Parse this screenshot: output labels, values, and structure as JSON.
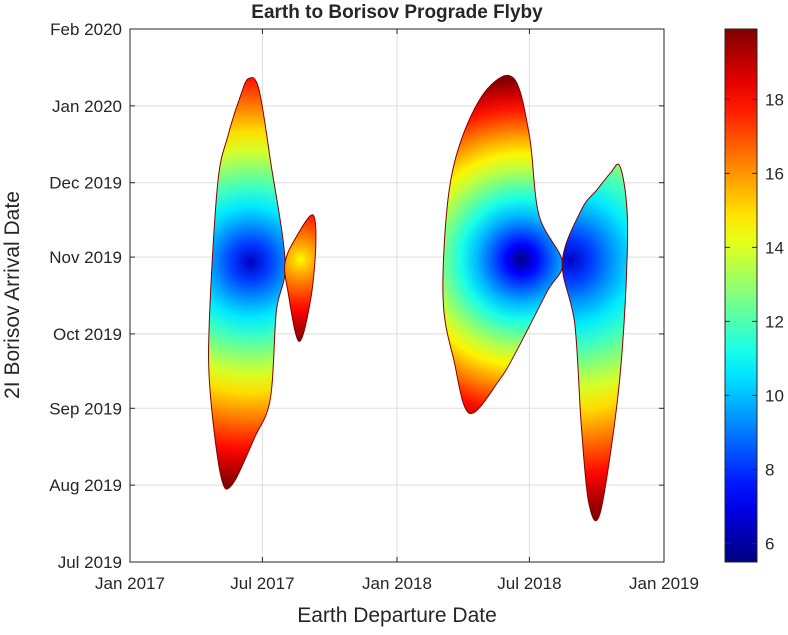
{
  "chart_data": {
    "type": "heatmap",
    "title": "Earth to Borisov Prograde Flyby",
    "xlabel": "Earth Departure Date",
    "ylabel": "2I Borisov Arrival Date",
    "x_ticks": [
      "Jan 2017",
      "Jul 2017",
      "Jan 2018",
      "Jul 2018",
      "Jan 2019"
    ],
    "y_ticks": [
      "Jul 2019",
      "Aug 2019",
      "Sep 2019",
      "Oct 2019",
      "Nov 2019",
      "Dec 2019",
      "Jan 2020",
      "Feb 2020"
    ],
    "xlim": [
      "2017-01-01",
      "2019-01-01"
    ],
    "ylim": [
      "2019-07-01",
      "2020-02-01"
    ],
    "grid": true,
    "colormap": "jet",
    "colorbar": {
      "range": [
        5.5,
        19.9
      ],
      "ticks": [
        6,
        8,
        10,
        12,
        14,
        16,
        18
      ],
      "tick_labels": [
        "6",
        "8",
        "10",
        "12",
        "14",
        "16",
        "18"
      ]
    },
    "regions": [
      {
        "x": [
          "2017-04-20",
          "2017-05-01",
          "2017-05-15",
          "2017-06-01",
          "2017-06-12",
          "2017-06-26",
          "2017-07-12",
          "2017-08-01",
          "2017-07-20",
          "2017-07-12",
          "2017-06-20",
          "2017-05-20",
          "2017-05-05",
          "2017-04-20"
        ],
        "y": [
          "2019-10-10",
          "2019-12-01",
          "2019-12-20",
          "2020-01-05",
          "2020-01-12",
          "2020-01-08",
          "2019-12-10",
          "2019-10-30",
          "2019-10-10",
          "2019-09-05",
          "2019-08-20",
          "2019-08-01",
          "2019-08-05",
          "2019-09-10"
        ],
        "min_value": 6.5,
        "min_at": [
          "2017-06-15",
          "2019-10-30"
        ],
        "edge_value": 19.9
      },
      {
        "x": [
          "2017-08-01",
          "2017-08-18",
          "2017-09-08",
          "2017-09-12",
          "2017-09-05",
          "2017-08-20",
          "2017-08-05"
        ],
        "y": [
          "2019-10-30",
          "2019-11-10",
          "2019-11-18",
          "2019-11-06",
          "2019-10-15",
          "2019-09-28",
          "2019-10-18"
        ],
        "min_value": 14.5,
        "min_at": [
          "2017-08-22",
          "2019-10-31"
        ],
        "edge_value": 19.9
      },
      {
        "x": [
          "2018-03-05",
          "2018-03-12",
          "2018-04-01",
          "2018-05-05",
          "2018-06-10",
          "2018-07-01",
          "2018-07-14",
          "2018-08-15",
          "2018-07-25",
          "2018-06-15",
          "2018-05-20",
          "2018-04-10",
          "2018-03-20"
        ],
        "y": [
          "2019-10-15",
          "2019-11-25",
          "2019-12-20",
          "2020-01-08",
          "2020-01-12",
          "2019-12-20",
          "2019-11-18",
          "2019-10-30",
          "2019-10-18",
          "2019-09-25",
          "2019-09-12",
          "2019-08-30",
          "2019-09-20"
        ],
        "min_value": 5.6,
        "min_at": [
          "2018-06-20",
          "2019-10-31"
        ],
        "edge_value": 19.9
      },
      {
        "x": [
          "2018-08-15",
          "2018-09-10",
          "2018-10-01",
          "2018-10-20",
          "2018-11-01",
          "2018-11-10",
          "2018-11-12",
          "2018-11-05",
          "2018-10-25",
          "2018-10-05",
          "2018-09-20",
          "2018-09-10",
          "2018-09-01"
        ],
        "y": [
          "2019-10-30",
          "2019-11-20",
          "2019-11-28",
          "2019-12-05",
          "2019-12-08",
          "2019-11-25",
          "2019-11-05",
          "2019-09-25",
          "2019-08-25",
          "2019-07-20",
          "2019-07-25",
          "2019-08-25",
          "2019-10-05"
        ],
        "min_value": 6.5,
        "min_at": [
          "2018-08-25",
          "2019-10-31"
        ],
        "edge_value": 19.9
      }
    ]
  }
}
